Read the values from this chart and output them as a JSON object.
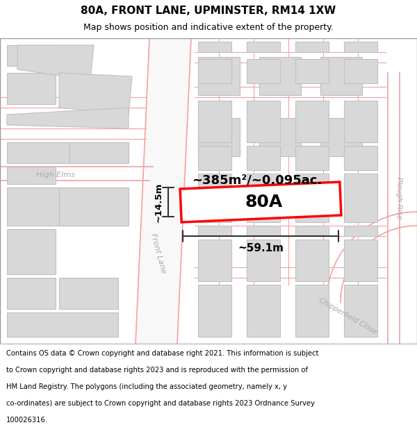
{
  "title": "80A, FRONT LANE, UPMINSTER, RM14 1XW",
  "subtitle": "Map shows position and indicative extent of the property.",
  "footer_lines": [
    "Contains OS data © Crown copyright and database right 2021. This information is subject",
    "to Crown copyright and database rights 2023 and is reproduced with the permission of",
    "HM Land Registry. The polygons (including the associated geometry, namely x, y",
    "co-ordinates) are subject to Crown copyright and database rights 2023 Ordnance Survey",
    "100026316."
  ],
  "map_bg": "#ffffff",
  "title_area_bg": "#ffffff",
  "footer_bg": "#ffffff",
  "road_color": "#f5a0a0",
  "building_fill": "#d8d8d8",
  "building_edge": "#c0c0c0",
  "highlight_fill": "#ffffff",
  "highlight_edge": "#ff0000",
  "highlight_label": "80A",
  "area_text": "~385m²/~0.095ac.",
  "width_text": "~59.1m",
  "height_text": "~14.5m",
  "road_label1": "Front Lane",
  "road_label2": "High Elms",
  "road_label3": "Plough Rise",
  "road_label4": "Chipperfield Close"
}
